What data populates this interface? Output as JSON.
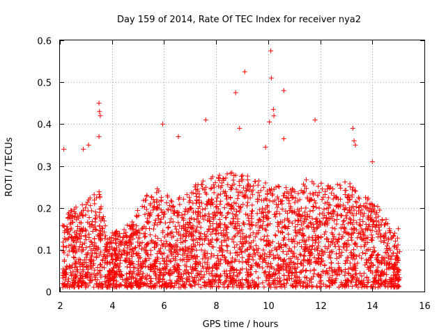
{
  "chart_data": {
    "type": "scatter",
    "title": "Day 159 of 2014, Rate Of TEC Index for receiver nya2",
    "xlabel": "GPS time / hours",
    "ylabel": "ROTI / TECUs",
    "xlim": [
      2,
      16
    ],
    "ylim": [
      0,
      0.6
    ],
    "x_ticks": [
      "2",
      "4",
      "6",
      "8",
      "10",
      "12",
      "14",
      "16"
    ],
    "y_ticks": [
      "0",
      "0.1",
      "0.2",
      "0.3",
      "0.4",
      "0.5",
      "0.6"
    ],
    "grid": true,
    "marker": "+",
    "marker_color": "#ff0000",
    "series": [
      {
        "name": "nya2",
        "x_range": [
          2.1,
          15.05
        ],
        "typical_band": [
          0.02,
          0.2
        ],
        "notable_points": [
          {
            "x": 2.15,
            "y": 0.34
          },
          {
            "x": 2.9,
            "y": 0.34
          },
          {
            "x": 3.1,
            "y": 0.35
          },
          {
            "x": 3.5,
            "y": 0.45
          },
          {
            "x": 3.52,
            "y": 0.43
          },
          {
            "x": 3.55,
            "y": 0.42
          },
          {
            "x": 3.5,
            "y": 0.37
          },
          {
            "x": 5.95,
            "y": 0.4
          },
          {
            "x": 6.55,
            "y": 0.37
          },
          {
            "x": 7.6,
            "y": 0.41
          },
          {
            "x": 8.75,
            "y": 0.475
          },
          {
            "x": 9.1,
            "y": 0.525
          },
          {
            "x": 8.9,
            "y": 0.39
          },
          {
            "x": 10.1,
            "y": 0.575
          },
          {
            "x": 10.12,
            "y": 0.51
          },
          {
            "x": 10.2,
            "y": 0.435
          },
          {
            "x": 10.22,
            "y": 0.42
          },
          {
            "x": 10.05,
            "y": 0.405
          },
          {
            "x": 9.9,
            "y": 0.345
          },
          {
            "x": 10.6,
            "y": 0.48
          },
          {
            "x": 10.6,
            "y": 0.365
          },
          {
            "x": 11.8,
            "y": 0.41
          },
          {
            "x": 13.25,
            "y": 0.39
          },
          {
            "x": 13.3,
            "y": 0.36
          },
          {
            "x": 13.35,
            "y": 0.35
          },
          {
            "x": 14.0,
            "y": 0.31
          },
          {
            "x": 15.0,
            "y": 0.15
          }
        ]
      }
    ]
  }
}
